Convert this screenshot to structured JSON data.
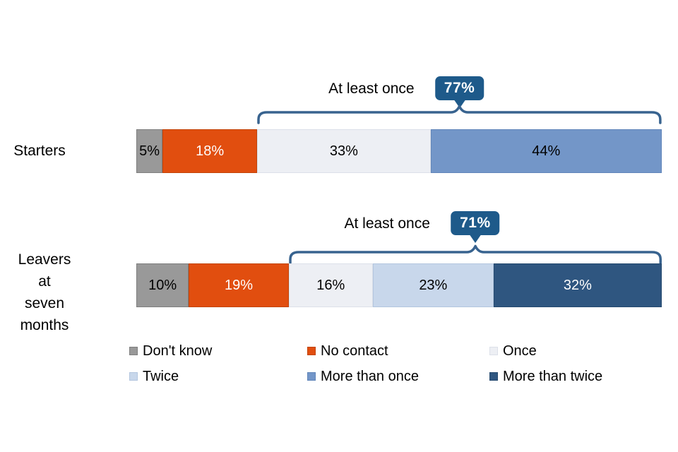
{
  "page": {
    "background": "#FFFFFF"
  },
  "style": {
    "accent_dark_blue": "#1E5A8A",
    "bracket_color": "#38638F"
  },
  "rows": [
    {
      "label": "Starters",
      "annotation": {
        "text": "At least once",
        "value": "77%"
      },
      "bracket": {
        "from_pct": 23,
        "span_pct": 77
      },
      "segments": [
        {
          "name": "Don't know",
          "display": "5%",
          "value": 5,
          "color": "#999999",
          "border": "#7F7F7F",
          "text_color": "#000000"
        },
        {
          "name": "No contact",
          "display": "18%",
          "value": 18,
          "color": "#E14E0F",
          "border": "#C24409",
          "text_color": "#FFFFFF"
        },
        {
          "name": "Once",
          "display": "33%",
          "value": 33,
          "color": "#EDEFF4",
          "border": "#DCE0E9",
          "text_color": "#000000"
        },
        {
          "name": "More than once",
          "display": "44%",
          "value": 44,
          "color": "#7396C8",
          "border": "#6186BA",
          "text_color": "#000000"
        }
      ]
    },
    {
      "label": "Leavers\nat\nseven\nmonths",
      "annotation": {
        "text": "At least once",
        "value": "71%"
      },
      "bracket": {
        "from_pct": 29,
        "span_pct": 71
      },
      "segments": [
        {
          "name": "Don't know",
          "display": "10%",
          "value": 10,
          "color": "#999999",
          "border": "#7F7F7F",
          "text_color": "#000000"
        },
        {
          "name": "No contact",
          "display": "19%",
          "value": 19,
          "color": "#E14E0F",
          "border": "#C24409",
          "text_color": "#FFFFFF"
        },
        {
          "name": "Once",
          "display": "16%",
          "value": 16,
          "color": "#EDEFF4",
          "border": "#DCE0E9",
          "text_color": "#000000"
        },
        {
          "name": "Twice",
          "display": "23%",
          "value": 23,
          "color": "#C8D7EB",
          "border": "#B3C6DF",
          "text_color": "#000000"
        },
        {
          "name": "More than twice",
          "display": "32%",
          "value": 32,
          "color": "#2F5680",
          "border": "#264A70",
          "text_color": "#FFFFFF"
        }
      ]
    }
  ],
  "legend": {
    "items": [
      {
        "label": "Don't know",
        "color": "#999999",
        "border": "#7F7F7F"
      },
      {
        "label": "No contact",
        "color": "#E14E0F",
        "border": "#C24409"
      },
      {
        "label": "Once",
        "color": "#EDEFF4",
        "border": "#DCE0E9"
      },
      {
        "label": "Twice",
        "color": "#C8D7EB",
        "border": "#B3C6DF"
      },
      {
        "label": "More than once",
        "color": "#7396C8",
        "border": "#6186BA"
      },
      {
        "label": "More than twice",
        "color": "#2F5680",
        "border": "#264A70"
      }
    ]
  },
  "chart_data": {
    "type": "bar",
    "subtype": "stacked-horizontal",
    "unit": "%",
    "xlim": [
      0,
      100
    ],
    "categories": [
      "Starters",
      "Leavers at seven months"
    ],
    "series": [
      {
        "name": "Don't know",
        "values": [
          5,
          10
        ],
        "color": "#999999"
      },
      {
        "name": "No contact",
        "values": [
          18,
          19
        ],
        "color": "#E14E0F"
      },
      {
        "name": "Once",
        "values": [
          33,
          16
        ],
        "color": "#EDEFF4"
      },
      {
        "name": "Twice",
        "values": [
          0,
          23
        ],
        "color": "#C8D7EB"
      },
      {
        "name": "More than once",
        "values": [
          44,
          0
        ],
        "color": "#7396C8"
      },
      {
        "name": "More than twice",
        "values": [
          0,
          32
        ],
        "color": "#2F5680"
      }
    ],
    "annotations": [
      {
        "category": "Starters",
        "text": "At least once",
        "value": 77,
        "covers": [
          "Once",
          "More than once"
        ]
      },
      {
        "category": "Leavers at seven months",
        "text": "At least once",
        "value": 71,
        "covers": [
          "Once",
          "Twice",
          "More than twice"
        ]
      }
    ],
    "legend_position": "bottom",
    "grid": false
  }
}
